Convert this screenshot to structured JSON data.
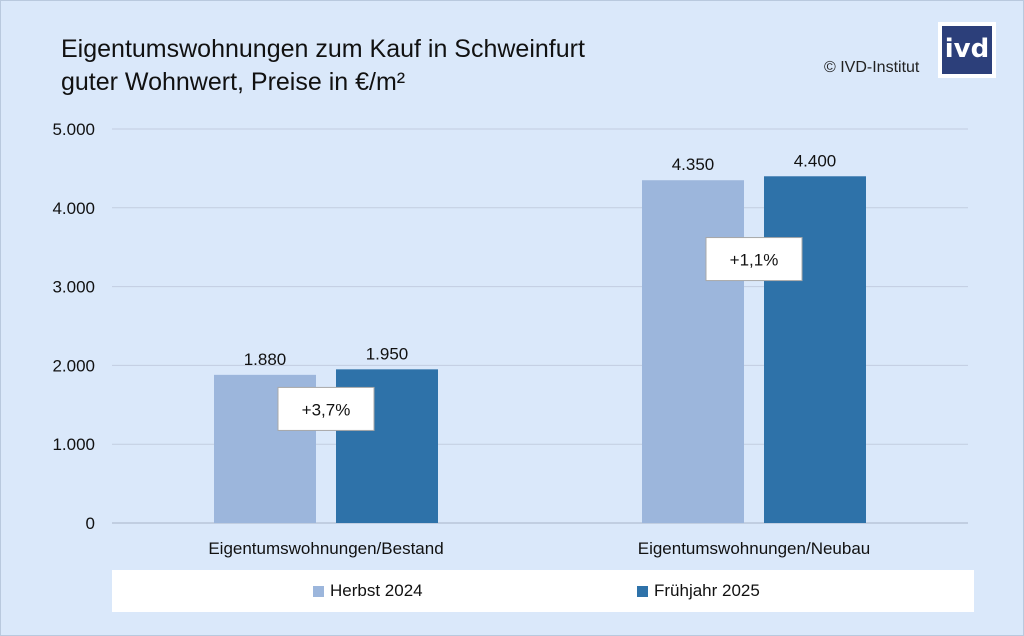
{
  "title_line1": "Eigentumswohnungen zum Kauf in Schweinfurt",
  "title_line2": "guter Wohnwert, Preise in €/m²",
  "copyright": "© IVD-Institut",
  "logo_text": "ivd",
  "colors": {
    "background": "#dae8fa",
    "series_herbst": "#9cb6dc",
    "series_fruehjahr": "#2e72a9",
    "gridline": "#c2cde0"
  },
  "chart_data": {
    "type": "bar",
    "categories": [
      "Eigentumswohnungen/Bestand",
      "Eigentumswohnungen/Neubau"
    ],
    "series": [
      {
        "name": "Herbst 2024",
        "values": [
          1880,
          4350
        ],
        "labels": [
          "1.880",
          "4.350"
        ],
        "color": "#9cb6dc"
      },
      {
        "name": "Frühjahr 2025",
        "values": [
          1950,
          4400
        ],
        "labels": [
          "1.950",
          "4.400"
        ],
        "color": "#2e72a9"
      }
    ],
    "annotations": [
      "+3,7%",
      "+1,1%"
    ],
    "ylim": [
      0,
      5000
    ],
    "yticks": [
      0,
      1000,
      2000,
      3000,
      4000,
      5000
    ],
    "ytick_labels": [
      "0",
      "1.000",
      "2.000",
      "3.000",
      "4.000",
      "5.000"
    ],
    "grid": true,
    "legend_position": "bottom"
  }
}
